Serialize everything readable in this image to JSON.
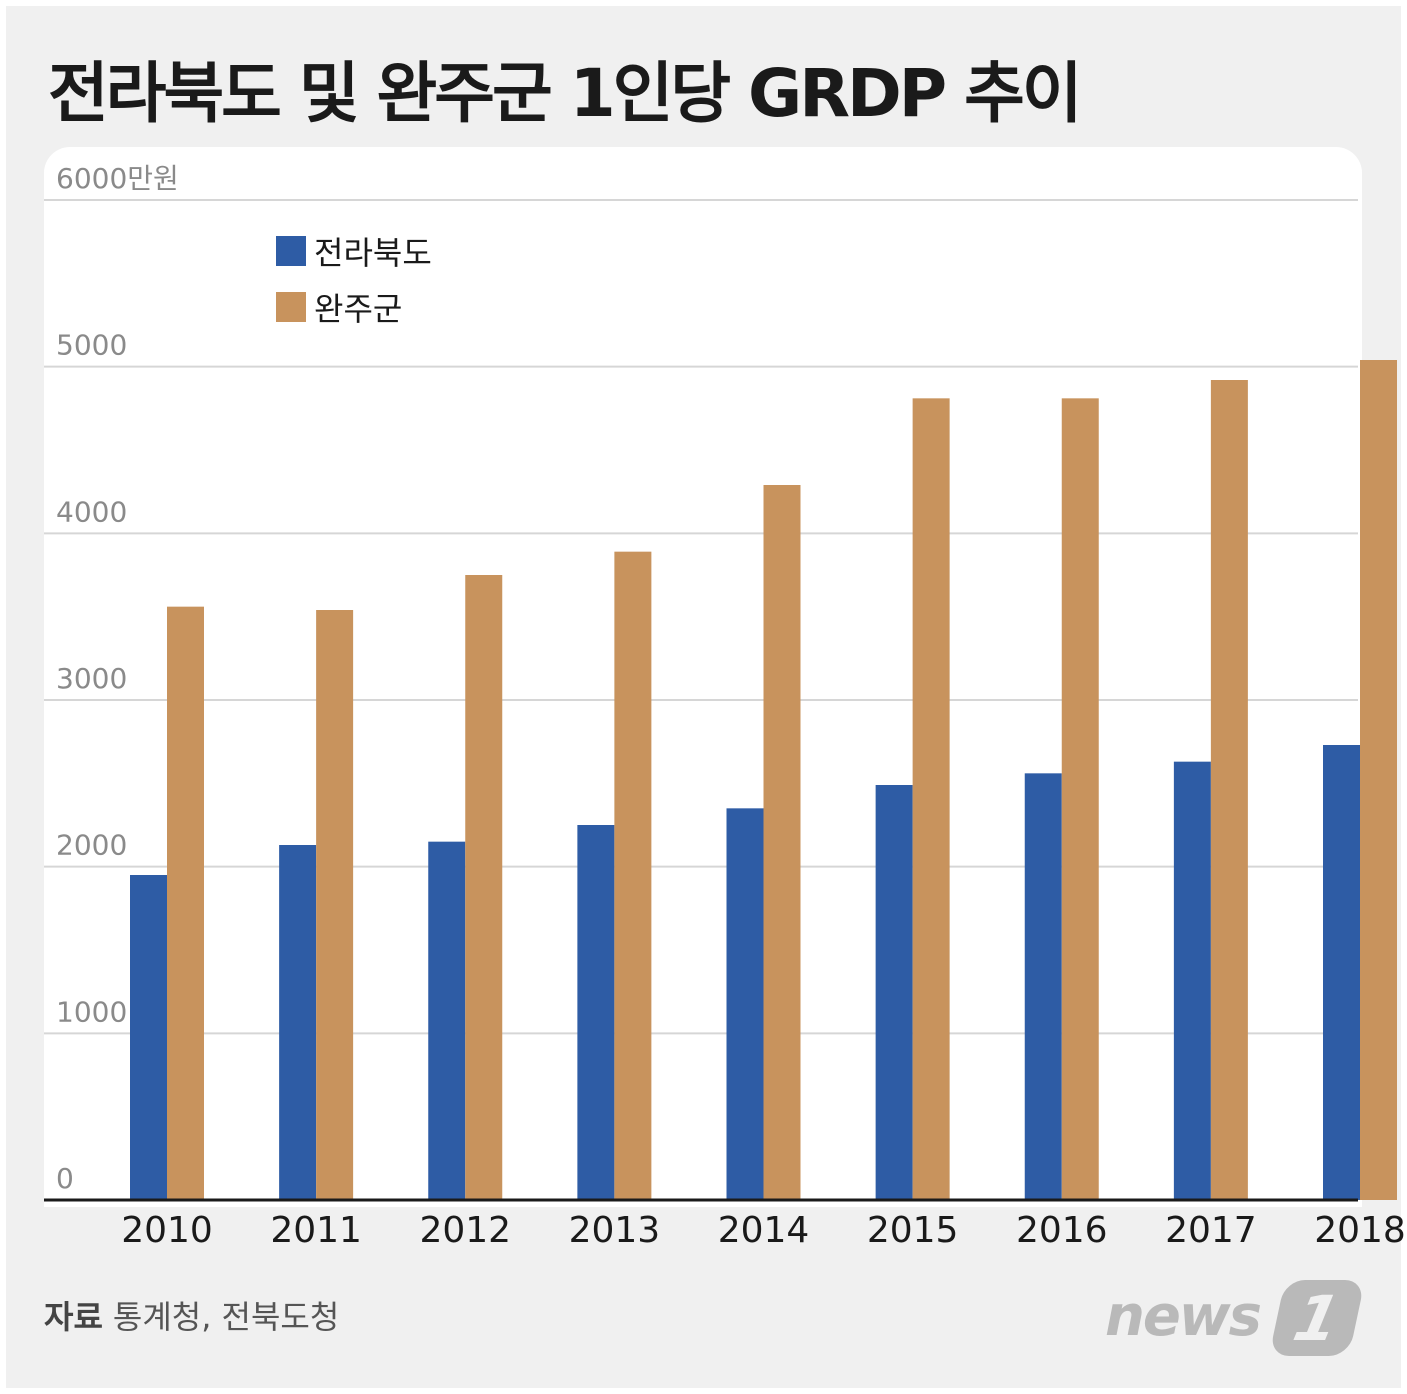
{
  "title": "전라북도 및 완주군 1인당 GRDP 추이",
  "source_label": "자료",
  "source_text": "통계청, 전북도청",
  "logo": {
    "text": "news",
    "mark": "1"
  },
  "colors": {
    "jeonbuk": "#2e5ca5",
    "wanju": "#c8935d",
    "grid": "#d6d6d6",
    "axis_text": "#8a8a8a"
  },
  "chart_data": {
    "type": "bar",
    "title": "전라북도 및 완주군 1인당 GRDP 추이",
    "unit_label": "6000만원",
    "xlabel": "",
    "ylabel": "",
    "ylim": [
      0,
      6000
    ],
    "yticks": [
      0,
      1000,
      2000,
      3000,
      4000,
      5000,
      6000
    ],
    "ytick_labels": [
      "0",
      "1000",
      "2000",
      "3000",
      "4000",
      "5000",
      "6000만원"
    ],
    "categories": [
      "2010",
      "2011",
      "2012",
      "2013",
      "2014",
      "2015",
      "2016",
      "2017",
      "2018"
    ],
    "series": [
      {
        "name": "전라북도",
        "values": [
          1950,
          2130,
          2150,
          2250,
          2350,
          2490,
          2560,
          2630,
          2730
        ]
      },
      {
        "name": "완주군",
        "values": [
          3560,
          3540,
          3750,
          3890,
          4290,
          4810,
          4810,
          4920,
          5040
        ]
      }
    ],
    "legend": "top-left"
  }
}
